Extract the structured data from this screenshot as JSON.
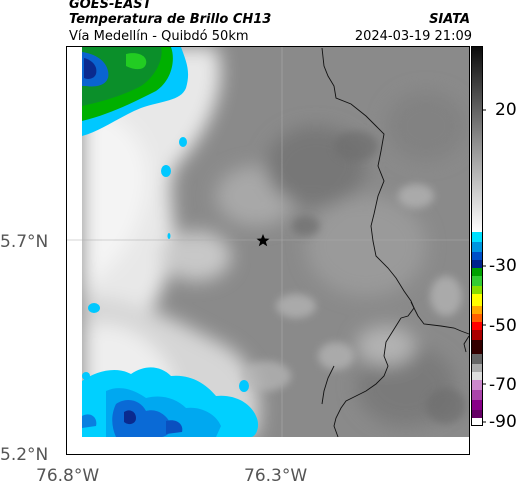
{
  "header": {
    "satellite": "GOES-EAST",
    "product": "Temperatura de Brillo CH13",
    "region": "Vía Medellín - Quibdó 50km",
    "org": "SIATA",
    "datetime": "2024-03-19 21:09"
  },
  "map": {
    "lat_labels": [
      "5.7°N",
      "5.2°N"
    ],
    "lon_labels": [
      "76.8°W",
      "76.3°W"
    ],
    "marker": "star-marker"
  },
  "colorbar": {
    "ticks": [
      "20",
      "-30",
      "-50",
      "-70",
      "-90"
    ],
    "scale_colors": [
      "#111111",
      "#555555",
      "#999999",
      "#dddddd",
      "#00bfff",
      "#0070ff",
      "#00a000",
      "#ffff00",
      "#ff6000",
      "#ff0000",
      "#220000",
      "#aa66aa",
      "#cc33cc"
    ]
  }
}
